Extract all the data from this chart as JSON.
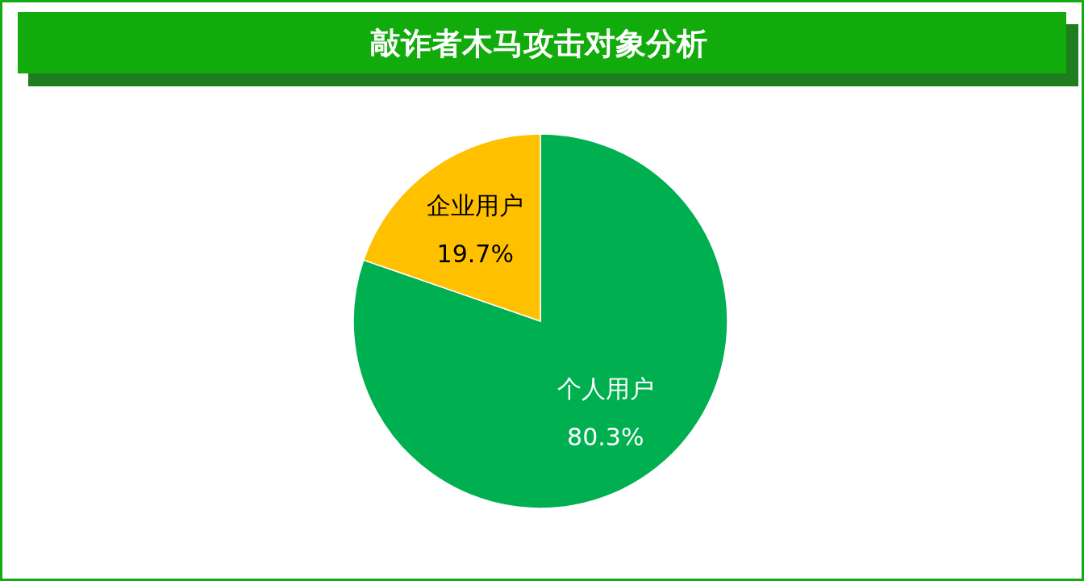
{
  "chart_data": {
    "type": "pie",
    "title": "敲诈者木马攻击对象分析",
    "categories": [
      "个人用户",
      "企业用户"
    ],
    "values": [
      80.3,
      19.7
    ],
    "colors": [
      "#00b050",
      "#ffc000"
    ],
    "value_labels": [
      "80.3%",
      "19.7%"
    ]
  }
}
